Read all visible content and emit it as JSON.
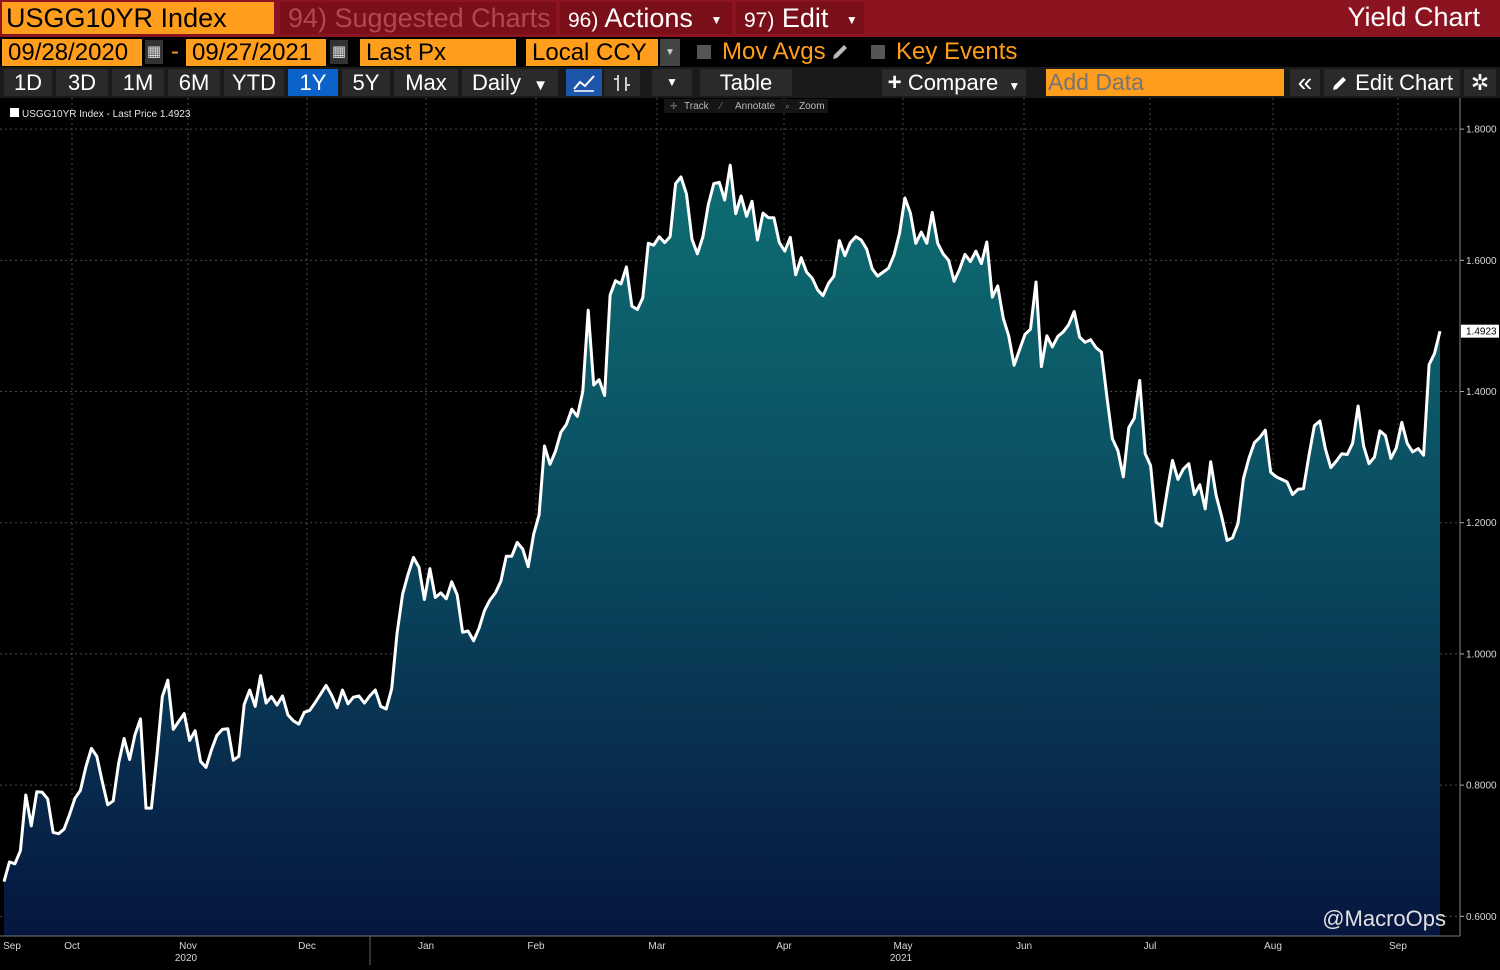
{
  "header": {
    "ticker": "USGG10YR Index",
    "suggested_label": "94) Suggested Charts",
    "actions_num": "96)",
    "actions_label": "Actions",
    "edit_num": "97)",
    "edit_label": "Edit",
    "title": "Yield Chart"
  },
  "controls": {
    "start_date": "09/28/2020",
    "dash": "-",
    "end_date": "09/27/2021",
    "field": "Last Px",
    "currency": "Local CCY",
    "mov_avgs": "Mov Avgs",
    "key_events": "Key Events"
  },
  "toolbar": {
    "ranges": [
      "1D",
      "3D",
      "1M",
      "6M",
      "YTD",
      "1Y",
      "5Y",
      "Max"
    ],
    "active_range": "1Y",
    "periodicity": "Daily",
    "table": "Table",
    "compare": "Compare",
    "add_data_placeholder": "Add Data",
    "edit_chart": "Edit Chart"
  },
  "chart_tools": {
    "track": "Track",
    "annotate": "Annotate",
    "zoom": "Zoom"
  },
  "watermark": "@MacroOps",
  "colors": {
    "accent": "#ff9d1c",
    "header_bg": "#8b1420",
    "line": "#ffffff",
    "fill_top": "#0d6670",
    "fill_bottom": "#071a40",
    "active_btn": "#0b63c9"
  },
  "chart_data": {
    "type": "area",
    "title": "",
    "legend_text": "USGG10YR Index - Last Price 1.4923",
    "last_value_label": "1.4923",
    "ylim": [
      0.57,
      1.82
    ],
    "yticks": [
      0.6,
      0.8,
      1.0,
      1.2,
      1.4,
      1.6,
      1.8
    ],
    "ytick_labels": [
      "0.6000",
      "0.8000",
      "1.0000",
      "1.2000",
      "1.4000",
      "1.6000",
      "1.8000"
    ],
    "x_month_labels": [
      "Sep",
      "Oct",
      "Nov",
      "Dec",
      "Jan",
      "Feb",
      "Mar",
      "Apr",
      "May",
      "Jun",
      "Jul",
      "Aug",
      "Sep"
    ],
    "x_year_labels": [
      {
        "label": "2020",
        "month_index": 2
      },
      {
        "label": "2021",
        "month_index": 8
      }
    ],
    "grid": true,
    "legend_position": "top-left",
    "series": [
      {
        "values": [
          0.653,
          0.683,
          0.68,
          0.7,
          0.785,
          0.738,
          0.79,
          0.789,
          0.779,
          0.728,
          0.726,
          0.733,
          0.755,
          0.78,
          0.792,
          0.828,
          0.856,
          0.844,
          0.805,
          0.77,
          0.776,
          0.834,
          0.871,
          0.839,
          0.877,
          0.901,
          0.765,
          0.765,
          0.845,
          0.935,
          0.96,
          0.885,
          0.897,
          0.909,
          0.868,
          0.883,
          0.836,
          0.827,
          0.854,
          0.876,
          0.885,
          0.886,
          0.838,
          0.844,
          0.923,
          0.945,
          0.92,
          0.967,
          0.925,
          0.935,
          0.922,
          0.936,
          0.907,
          0.898,
          0.893,
          0.911,
          0.914,
          0.926,
          0.939,
          0.952,
          0.937,
          0.918,
          0.945,
          0.924,
          0.934,
          0.936,
          0.925,
          0.936,
          0.945,
          0.92,
          0.916,
          0.947,
          1.032,
          1.091,
          1.121,
          1.147,
          1.132,
          1.083,
          1.13,
          1.086,
          1.093,
          1.084,
          1.11,
          1.09,
          1.033,
          1.035,
          1.02,
          1.039,
          1.066,
          1.082,
          1.093,
          1.111,
          1.149,
          1.149,
          1.17,
          1.16,
          1.133,
          1.182,
          1.212,
          1.317,
          1.289,
          1.309,
          1.338,
          1.35,
          1.373,
          1.362,
          1.4,
          1.524,
          1.41,
          1.418,
          1.394,
          1.547,
          1.569,
          1.564,
          1.59,
          1.53,
          1.525,
          1.543,
          1.626,
          1.623,
          1.636,
          1.627,
          1.636,
          1.717,
          1.727,
          1.701,
          1.632,
          1.61,
          1.636,
          1.685,
          1.717,
          1.719,
          1.692,
          1.745,
          1.671,
          1.698,
          1.667,
          1.69,
          1.631,
          1.672,
          1.665,
          1.665,
          1.627,
          1.614,
          1.635,
          1.578,
          1.604,
          1.582,
          1.573,
          1.555,
          1.546,
          1.565,
          1.576,
          1.63,
          1.607,
          1.627,
          1.636,
          1.631,
          1.617,
          1.587,
          1.576,
          1.582,
          1.588,
          1.608,
          1.641,
          1.695,
          1.672,
          1.626,
          1.643,
          1.626,
          1.673,
          1.626,
          1.61,
          1.6,
          1.568,
          1.586,
          1.609,
          1.598,
          1.614,
          1.595,
          1.628,
          1.544,
          1.561,
          1.512,
          1.485,
          1.44,
          1.464,
          1.487,
          1.495,
          1.567,
          1.438,
          1.485,
          1.468,
          1.484,
          1.491,
          1.502,
          1.522,
          1.483,
          1.475,
          1.479,
          1.467,
          1.46,
          1.392,
          1.328,
          1.31,
          1.27,
          1.345,
          1.359,
          1.417,
          1.305,
          1.287,
          1.201,
          1.195,
          1.246,
          1.295,
          1.266,
          1.282,
          1.29,
          1.243,
          1.258,
          1.221,
          1.293,
          1.242,
          1.21,
          1.173,
          1.177,
          1.199,
          1.267,
          1.298,
          1.322,
          1.33,
          1.341,
          1.277,
          1.27,
          1.266,
          1.262,
          1.243,
          1.251,
          1.252,
          1.303,
          1.348,
          1.355,
          1.313,
          1.284,
          1.294,
          1.305,
          1.304,
          1.321,
          1.378,
          1.317,
          1.29,
          1.3,
          1.34,
          1.333,
          1.298,
          1.314,
          1.353,
          1.321,
          1.308,
          1.313,
          1.303,
          1.441,
          1.458,
          1.492
        ]
      }
    ]
  }
}
